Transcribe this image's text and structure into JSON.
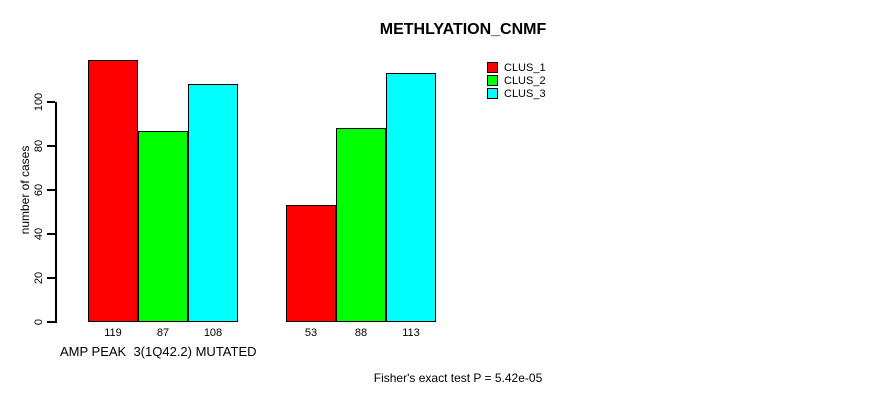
{
  "chart_data": {
    "type": "bar",
    "title": "METHLYATION_CNMF",
    "ylabel": "number of cases",
    "xlabel": "AMP PEAK  3(1Q42.2) MUTATED",
    "annotation": "Fisher's exact test P = 5.42e-05",
    "ylim": [
      0,
      120
    ],
    "yticks": [
      0,
      20,
      40,
      60,
      80,
      100
    ],
    "grid": false,
    "legend_position": "top-right-inside",
    "groups": [
      "group-1",
      "group-2"
    ],
    "series": [
      {
        "name": "CLUS_1",
        "color": "#ff0000",
        "values": [
          119,
          53
        ]
      },
      {
        "name": "CLUS_2",
        "color": "#00ff00",
        "values": [
          87,
          88
        ]
      },
      {
        "name": "CLUS_3",
        "color": "#00ffff",
        "values": [
          108,
          113
        ]
      }
    ],
    "bar_border_color": "#000000",
    "background_color": "#ffffff"
  }
}
